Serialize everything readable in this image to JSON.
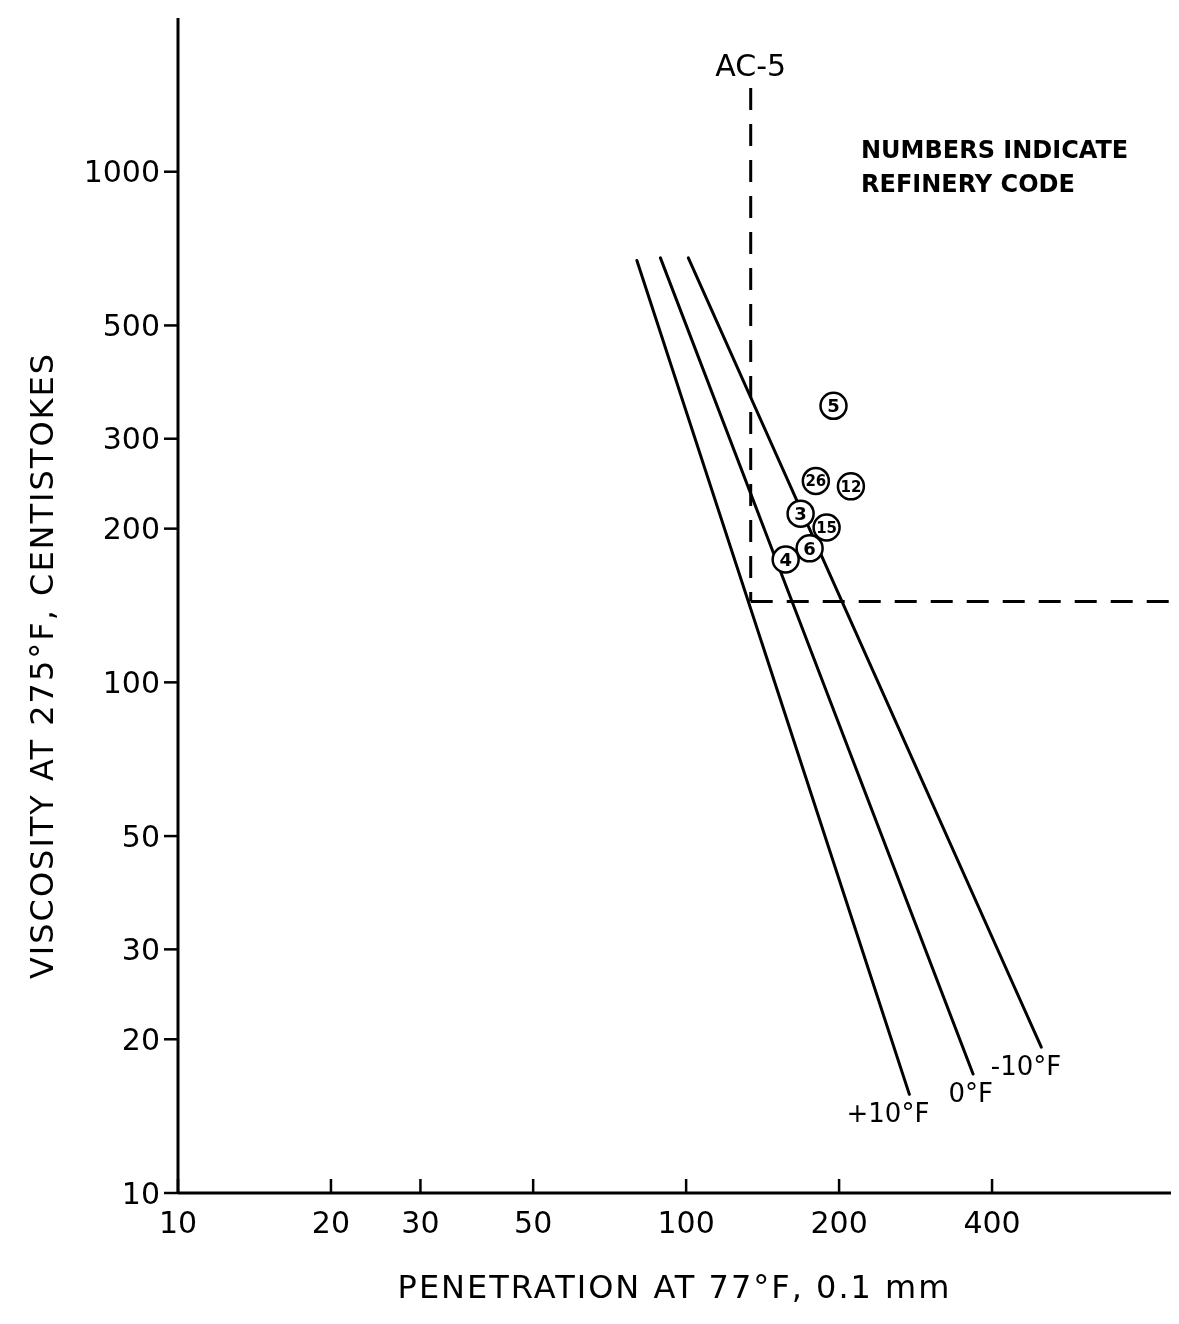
{
  "chart_data": {
    "type": "line",
    "xlabel": "PENETRATION AT 77°F, 0.1 mm",
    "ylabel": "VISCOSITY AT 275°F, CENTISTOKES",
    "log": "xy",
    "xlim": [
      10,
      900
    ],
    "xticks": [
      10,
      20,
      30,
      50,
      100,
      200,
      400
    ],
    "ylim": [
      10,
      2000
    ],
    "yticks": [
      10,
      20,
      30,
      50,
      100,
      200,
      300,
      500,
      1000
    ],
    "grid": false,
    "series": [
      {
        "name": "+10°F",
        "color": "#000000",
        "x": [
          80,
          275
        ],
        "values": [
          670,
          15.6
        ],
        "marker": "none",
        "line_style": "solid"
      },
      {
        "name": "0°F",
        "color": "#000000",
        "x": [
          89,
          367
        ],
        "values": [
          678,
          17.1
        ],
        "marker": "none",
        "line_style": "solid"
      },
      {
        "name": "-10°F",
        "color": "#000000",
        "x": [
          101,
          500
        ],
        "values": [
          678,
          19.3
        ],
        "marker": "none",
        "line_style": "solid"
      },
      {
        "type": "scatter",
        "color": "#000000",
        "x": [
          195,
          180,
          211,
          168,
          189,
          175,
          157
        ],
        "values": [
          348,
          248,
          242,
          214,
          201,
          183,
          174
        ],
        "marker": "circle"
      }
    ],
    "ref_lines": [
      {
        "axis": "x",
        "value": 134,
        "label": "AC-5",
        "line_style": "dashed"
      },
      {
        "axis": "y",
        "value": 144,
        "line_style": "dashed"
      }
    ],
    "annotations": [
      "NUMBERS INDICATE REFINERY CODE",
      {
        "text": "5",
        "x": 195,
        "y": 348
      },
      {
        "text": "26",
        "x": 180,
        "y": 248
      },
      {
        "text": "12",
        "x": 211,
        "y": 242
      },
      {
        "text": "3",
        "x": 168,
        "y": 214
      },
      {
        "text": "15",
        "x": 189,
        "y": 201
      },
      {
        "text": "6",
        "x": 175,
        "y": 183
      },
      {
        "text": "4",
        "x": 157,
        "y": 174
      }
    ]
  }
}
